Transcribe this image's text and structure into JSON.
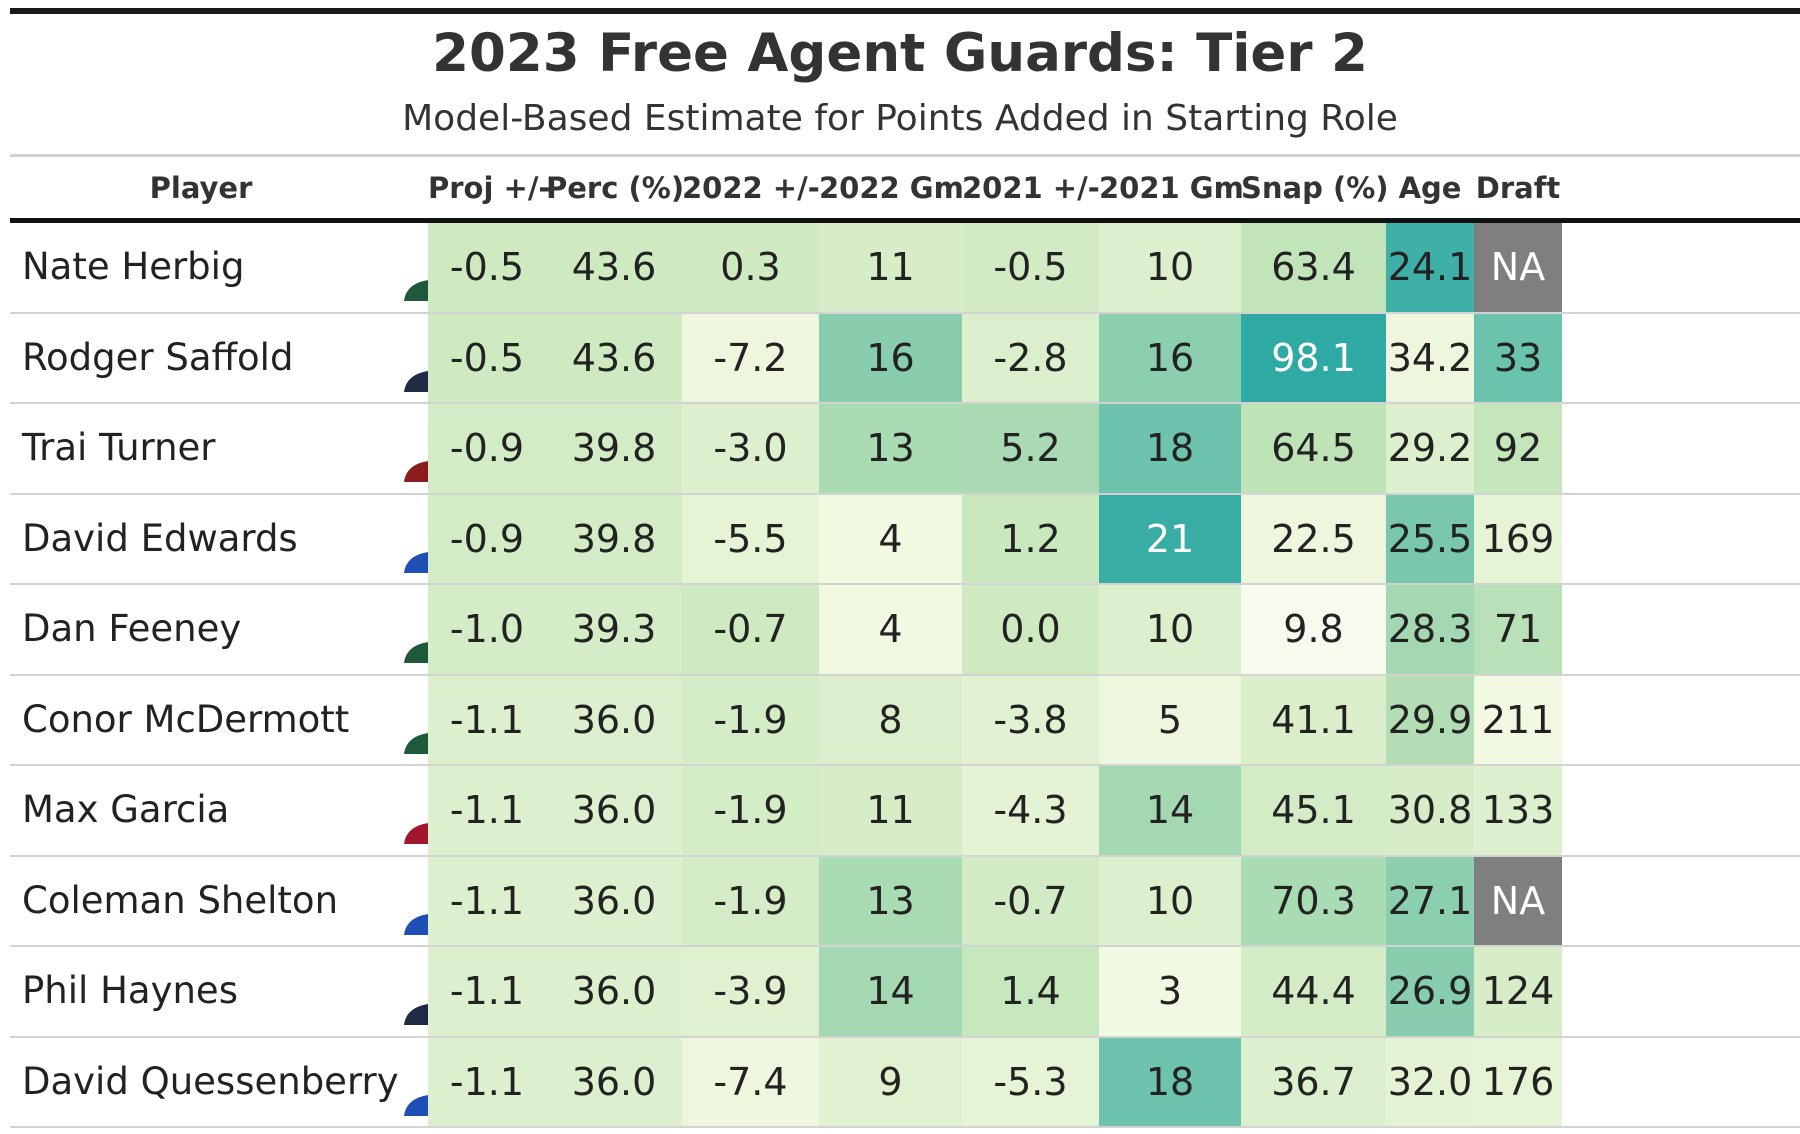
{
  "title": "2023 Free Agent Guards: Tier 2",
  "subtitle": "Model-Based Estimate for Points Added in Starting Role",
  "columns": [
    "Player",
    "Proj +/-",
    "Perc (%)",
    "2022 +/-",
    "2022 Gm",
    "2021 +/-",
    "2021 Gm",
    "Snap (%)",
    "Age",
    "Draft"
  ],
  "rows": [
    {
      "player": "Nate Herbig",
      "team_colors": {
        "jersey": "#1e5a3a",
        "helmet": "#1e5a3a",
        "trim": "#ffffff"
      },
      "values": [
        "-0.5",
        "43.6",
        "0.3",
        "11",
        "-0.5",
        "10",
        "63.4",
        "24.1",
        "NA"
      ],
      "colors": [
        "#cfeac0",
        "#cfeac0",
        "#cfeac0",
        "#d6edc7",
        "#d2ebc4",
        "#dcf0cd",
        "#c1e4b8",
        "#3fb0a7",
        "#7f7f7f"
      ],
      "text_colors": [
        "#222",
        "#222",
        "#222",
        "#222",
        "#222",
        "#222",
        "#222",
        "#222",
        "#ffffff"
      ]
    },
    {
      "player": "Rodger Saffold",
      "team_colors": {
        "jersey": "#1f2a44",
        "helmet": "#1f2a44",
        "trim": "#a5acaf"
      },
      "values": [
        "-0.5",
        "43.6",
        "-7.2",
        "16",
        "-2.8",
        "16",
        "98.1",
        "34.2",
        "33"
      ],
      "colors": [
        "#cfeac0",
        "#cfeac0",
        "#eef7dd",
        "#88ceae",
        "#dbefcc",
        "#8bcfae",
        "#2ea9a4",
        "#eef7dd",
        "#6cc3ad"
      ],
      "text_colors": [
        "#222",
        "#222",
        "#222",
        "#222",
        "#222",
        "#222",
        "#ffffff",
        "#222",
        "#222"
      ]
    },
    {
      "player": "Trai Turner",
      "team_colors": {
        "jersey": "#8b1c1c",
        "helmet": "#5a1414",
        "trim": "#f2b31b"
      },
      "values": [
        "-0.9",
        "39.8",
        "-3.0",
        "13",
        "5.2",
        "18",
        "64.5",
        "29.2",
        "92"
      ],
      "colors": [
        "#d3ecc5",
        "#d3ecc5",
        "#dcf0cd",
        "#aadcb4",
        "#a9dab3",
        "#6dc3ad",
        "#bde3b7",
        "#dcf0cd",
        "#c5e6bb"
      ],
      "text_colors": [
        "#222",
        "#222",
        "#222",
        "#222",
        "#222",
        "#222",
        "#222",
        "#222",
        "#222"
      ]
    },
    {
      "player": "David Edwards",
      "team_colors": {
        "jersey": "#1f4fb5",
        "helmet": "#1f4fb5",
        "trim": "#f5d23a"
      },
      "values": [
        "-0.9",
        "39.8",
        "-5.5",
        "4",
        "1.2",
        "21",
        "22.5",
        "25.5",
        "169"
      ],
      "colors": [
        "#d3ecc5",
        "#d3ecc5",
        "#e6f4d6",
        "#f2f9e2",
        "#c9e8bd",
        "#37ada6",
        "#eef7dd",
        "#79c8ae",
        "#e6f4d6"
      ],
      "text_colors": [
        "#222",
        "#222",
        "#222",
        "#222",
        "#222",
        "#ffffff",
        "#222",
        "#222",
        "#222"
      ]
    },
    {
      "player": "Dan Feeney",
      "team_colors": {
        "jersey": "#1e5a3a",
        "helmet": "#1e5a3a",
        "trim": "#ffffff"
      },
      "values": [
        "-1.0",
        "39.3",
        "-0.7",
        "4",
        "0.0",
        "10",
        "9.8",
        "28.3",
        "71"
      ],
      "colors": [
        "#d5edc6",
        "#d5edc6",
        "#cfeac0",
        "#f2f9e2",
        "#cfeac0",
        "#dcf0cd",
        "#f7fbee",
        "#a3d8b2",
        "#b9e1b7"
      ],
      "text_colors": [
        "#222",
        "#222",
        "#222",
        "#222",
        "#222",
        "#222",
        "#222",
        "#222",
        "#222"
      ]
    },
    {
      "player": "Conor McDermott",
      "team_colors": {
        "jersey": "#1e5a3a",
        "helmet": "#1e5a3a",
        "trim": "#ffffff"
      },
      "values": [
        "-1.1",
        "36.0",
        "-1.9",
        "8",
        "-3.8",
        "5",
        "41.1",
        "29.9",
        "211"
      ],
      "colors": [
        "#dcf0cd",
        "#dcf0cd",
        "#d5edc6",
        "#dbefcc",
        "#e1f2d2",
        "#eef7dd",
        "#d9eec9",
        "#b3ddb5",
        "#f2f9e2"
      ],
      "text_colors": [
        "#222",
        "#222",
        "#222",
        "#222",
        "#222",
        "#222",
        "#222",
        "#222",
        "#222"
      ]
    },
    {
      "player": "Max Garcia",
      "team_colors": {
        "jersey": "#a0172e",
        "helmet": "#a0172e",
        "trim": "#ffffff"
      },
      "values": [
        "-1.1",
        "36.0",
        "-1.9",
        "11",
        "-4.3",
        "14",
        "45.1",
        "30.8",
        "133"
      ],
      "colors": [
        "#dcf0cd",
        "#dcf0cd",
        "#d5edc6",
        "#d6edc7",
        "#e3f3d3",
        "#a3d8b2",
        "#d4ecc5",
        "#d6edc7",
        "#dcf0cd"
      ],
      "text_colors": [
        "#222",
        "#222",
        "#222",
        "#222",
        "#222",
        "#222",
        "#222",
        "#222",
        "#222"
      ]
    },
    {
      "player": "Coleman Shelton",
      "team_colors": {
        "jersey": "#1f4fb5",
        "helmet": "#1f4fb5",
        "trim": "#f5d23a"
      },
      "values": [
        "-1.1",
        "36.0",
        "-1.9",
        "13",
        "-0.7",
        "10",
        "70.3",
        "27.1",
        "NA"
      ],
      "colors": [
        "#dcf0cd",
        "#dcf0cd",
        "#d5edc6",
        "#aadcb4",
        "#d2ebc4",
        "#dcf0cd",
        "#aadcb4",
        "#8bcfae",
        "#7f7f7f"
      ],
      "text_colors": [
        "#222",
        "#222",
        "#222",
        "#222",
        "#222",
        "#222",
        "#222",
        "#222",
        "#ffffff"
      ]
    },
    {
      "player": "Phil Haynes",
      "team_colors": {
        "jersey": "#1f2a44",
        "helmet": "#1f2a44",
        "trim": "#69be28"
      },
      "values": [
        "-1.1",
        "36.0",
        "-3.9",
        "14",
        "1.4",
        "3",
        "44.4",
        "26.9",
        "124"
      ],
      "colors": [
        "#dcf0cd",
        "#dcf0cd",
        "#dff1cf",
        "#a3d8b2",
        "#c7e7bc",
        "#f2f9e2",
        "#d4ecc5",
        "#88ceae",
        "#d6edc7"
      ],
      "text_colors": [
        "#222",
        "#222",
        "#222",
        "#222",
        "#222",
        "#222",
        "#222",
        "#222",
        "#222"
      ]
    },
    {
      "player": "David Quessenberry",
      "team_colors": {
        "jersey": "#1f4fb5",
        "helmet": "#ffffff",
        "trim": "#d12a2f"
      },
      "values": [
        "-1.1",
        "36.0",
        "-7.4",
        "9",
        "-5.3",
        "18",
        "36.7",
        "32.0",
        "176"
      ],
      "colors": [
        "#dcf0cd",
        "#dcf0cd",
        "#eef7dd",
        "#dff1cf",
        "#e6f4d6",
        "#6dc3ad",
        "#dcf0cd",
        "#e3f3d3",
        "#e6f4d6"
      ],
      "text_colors": [
        "#222",
        "#222",
        "#222",
        "#222",
        "#222",
        "#222",
        "#222",
        "#222",
        "#222"
      ]
    }
  ]
}
